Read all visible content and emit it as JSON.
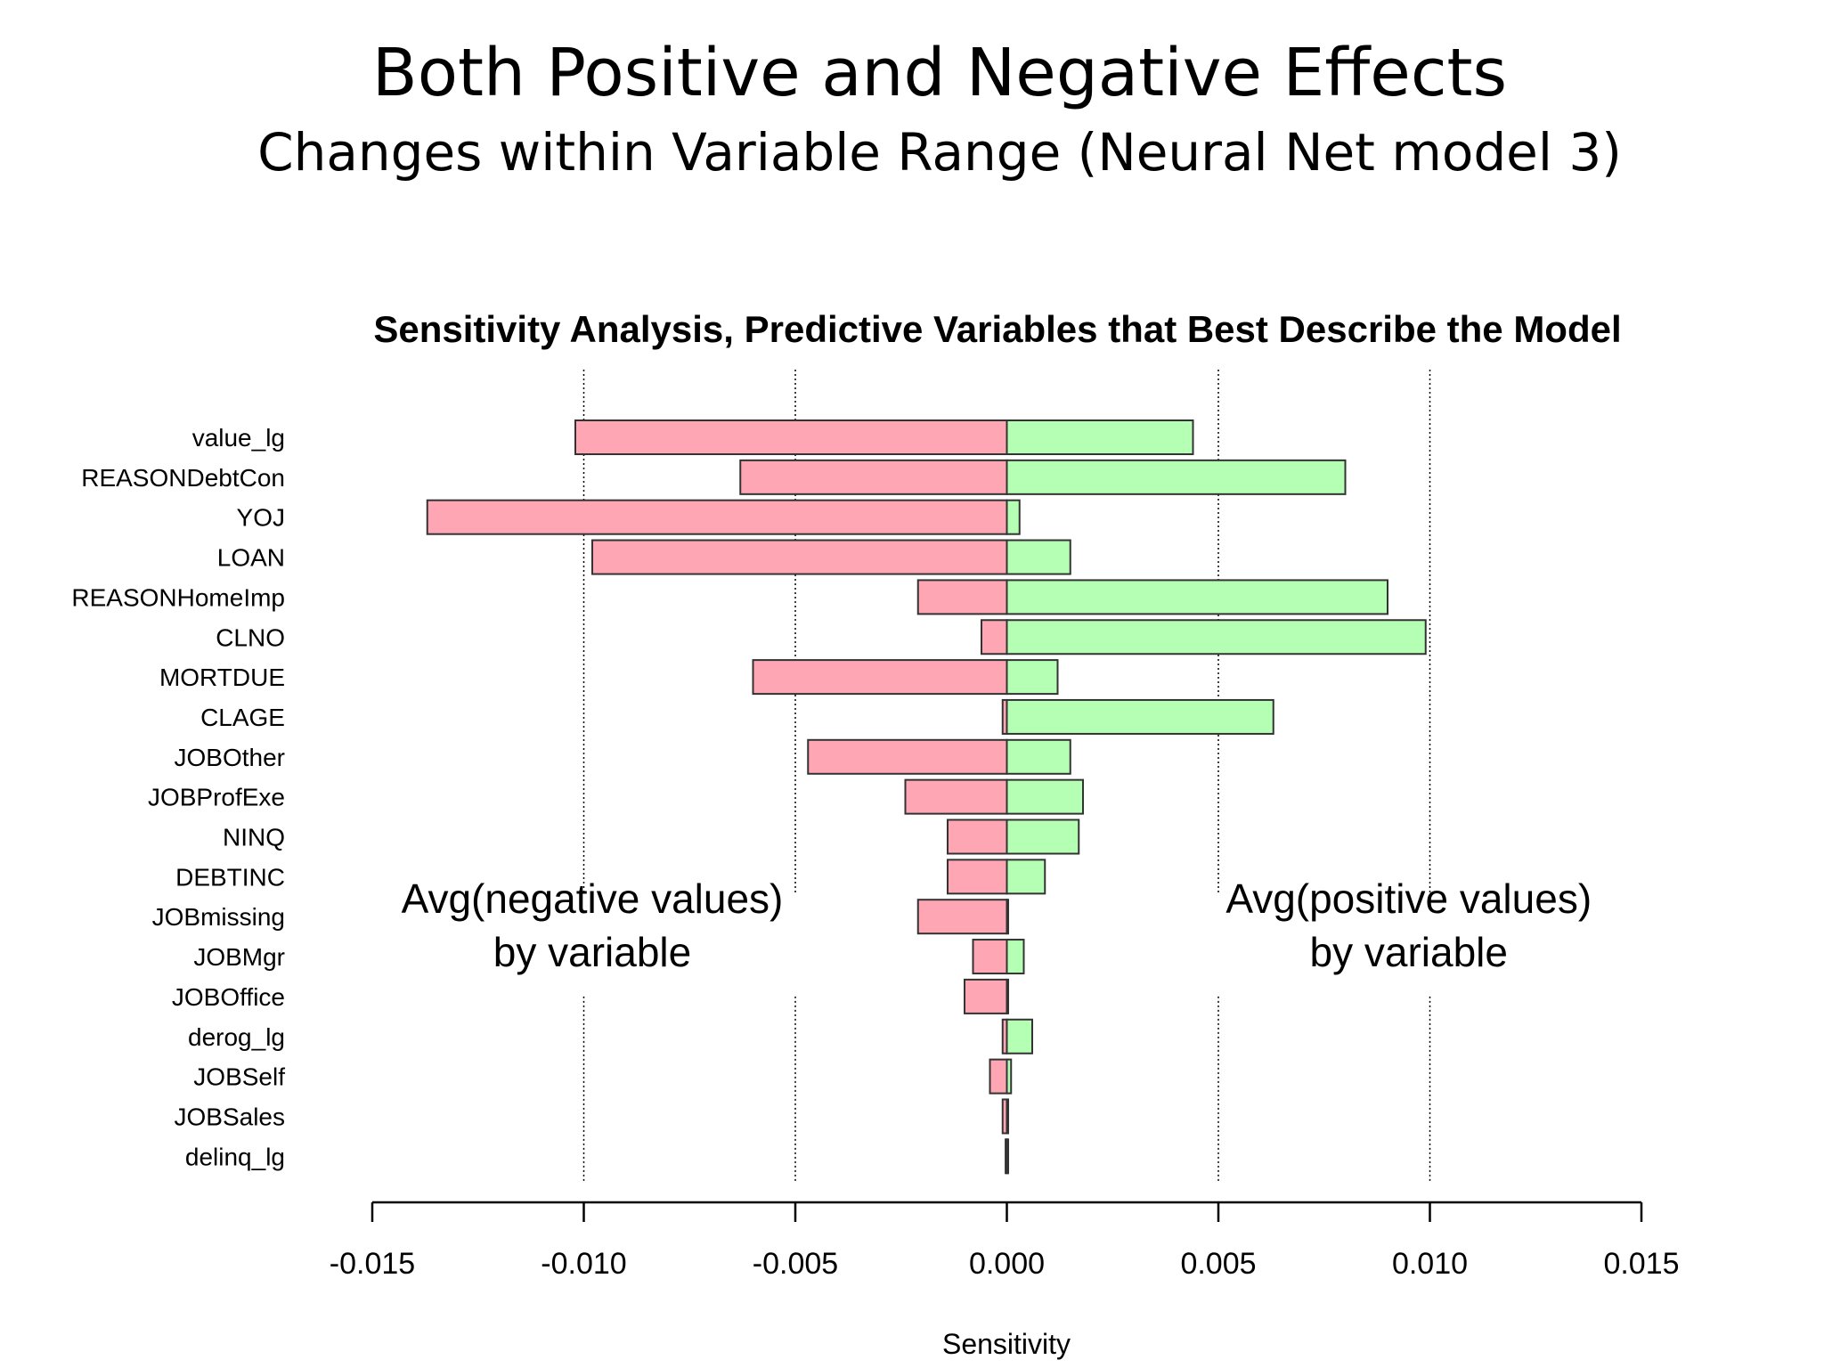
{
  "slide": {
    "title": "Both Positive and Negative Effects",
    "subtitle": "Changes within Variable Range (Neural Net model 3)"
  },
  "chart_data": {
    "type": "bar",
    "orientation": "horizontal",
    "title": "Sensitivity Analysis, Predictive Variables that Best Describe the Model",
    "xlabel": "Sensitivity",
    "ylabel": "",
    "xlim": [
      -0.015,
      0.015
    ],
    "xticks": [
      -0.015,
      -0.01,
      -0.005,
      0.0,
      0.005,
      0.01,
      0.015
    ],
    "xtick_labels": [
      "-0.015",
      "-0.010",
      "-0.005",
      "0.000",
      "0.005",
      "0.010",
      "0.015"
    ],
    "gridlines_x": [
      -0.01,
      -0.005,
      0.005,
      0.01
    ],
    "grid_style": "dotted vertical",
    "categories": [
      "value_lg",
      "REASONDebtCon",
      "YOJ",
      "LOAN",
      "REASONHomeImp",
      "CLNO",
      "MORTDUE",
      "CLAGE",
      "JOBOther",
      "JOBProfExe",
      "NINQ",
      "DEBTINC",
      "JOBmissing",
      "JOBMgr",
      "JOBOffice",
      "derog_lg",
      "JOBSelf",
      "JOBSales",
      "delinq_lg"
    ],
    "series": [
      {
        "color": "#ffa6b5",
        "values": [
          -0.0102,
          -0.0063,
          -0.0137,
          -0.0098,
          -0.0021,
          -0.0006,
          -0.006,
          -0.0001,
          -0.0047,
          -0.0024,
          -0.0014,
          -0.0014,
          -0.0021,
          -0.0008,
          -0.001,
          -0.0001,
          -0.0004,
          -0.0001,
          -3e-05
        ]
      },
      {
        "color": "#b5ffb5",
        "values": [
          0.0044,
          0.008,
          0.0003,
          0.0015,
          0.009,
          0.0099,
          0.0012,
          0.0063,
          0.0015,
          0.0018,
          0.0017,
          0.0009,
          0.0,
          0.0004,
          0.0,
          0.0006,
          0.0001,
          0.0,
          3e-05
        ]
      }
    ],
    "annotations": [
      {
        "lines": [
          "Avg(negative values)",
          "by variable"
        ],
        "x": -0.0098,
        "category_anchor": "JOBmissing"
      },
      {
        "lines": [
          "Avg(positive values)",
          "by variable"
        ],
        "x": 0.0095,
        "category_anchor": "JOBmissing"
      }
    ]
  }
}
